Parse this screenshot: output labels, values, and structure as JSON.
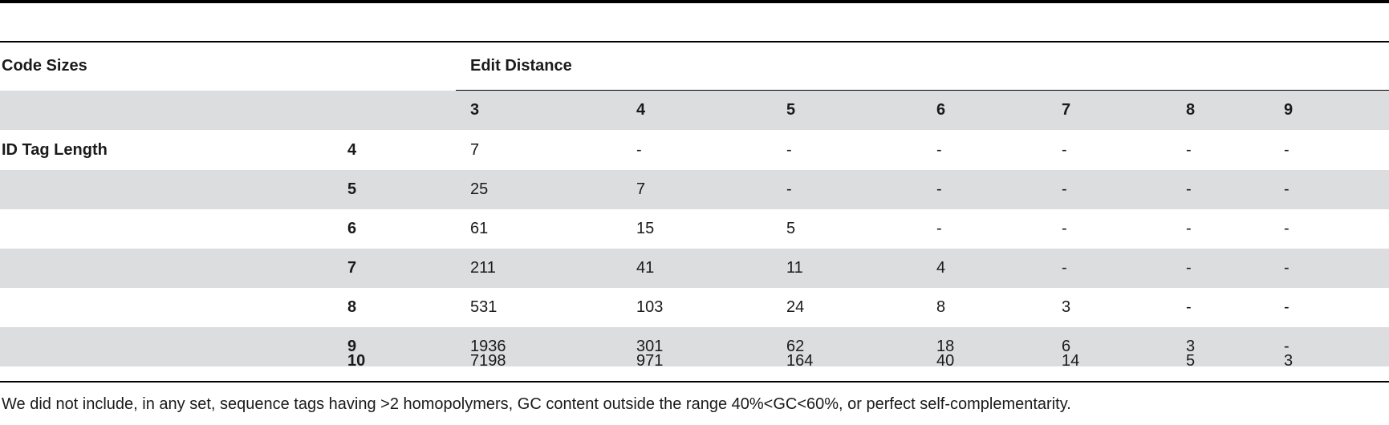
{
  "table": {
    "row_header_label": "Code Sizes",
    "column_group_label": "Edit Distance",
    "row_group_label": "ID Tag Length",
    "columns": [
      "3",
      "4",
      "5",
      "6",
      "7",
      "8",
      "9"
    ],
    "rows": [
      {
        "length": "4",
        "values": [
          "7",
          "-",
          "-",
          "-",
          "-",
          "-",
          "-"
        ]
      },
      {
        "length": "5",
        "values": [
          "25",
          "7",
          "-",
          "-",
          "-",
          "-",
          "-"
        ]
      },
      {
        "length": "6",
        "values": [
          "61",
          "15",
          "5",
          "-",
          "-",
          "-",
          "-"
        ]
      },
      {
        "length": "7",
        "values": [
          "211",
          "41",
          "11",
          "4",
          "-",
          "-",
          "-"
        ]
      },
      {
        "length": "8",
        "values": [
          "531",
          "103",
          "24",
          "8",
          "3",
          "-",
          "-"
        ]
      },
      {
        "length": "9",
        "values": [
          "1936",
          "301",
          "62",
          "18",
          "6",
          "3",
          "-"
        ]
      },
      {
        "length": "10",
        "values": [
          "7198",
          "971",
          "164",
          "40",
          "14",
          "5",
          "3"
        ]
      }
    ],
    "footnote": "We did not include, in any set, sequence tags having >2 homopolymers, GC content outside the range 40%<GC<60%, or perfect self-complementarity."
  },
  "colors": {
    "band_shade": "#dcdddf",
    "rule": "#000000",
    "text": "#1a1a1a"
  }
}
